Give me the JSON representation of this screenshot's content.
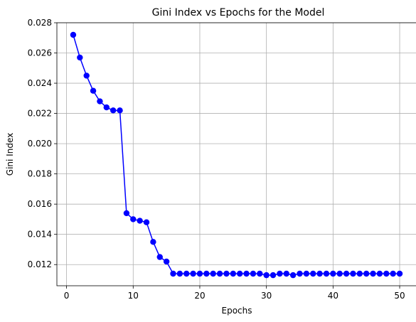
{
  "chart_data": {
    "type": "line",
    "title": "Gini Index vs Epochs for the Model",
    "xlabel": "Epochs",
    "ylabel": "Gini Index",
    "xlim": [
      -1.45,
      52.45
    ],
    "ylim": [
      0.0106,
      0.028
    ],
    "xticks": [
      0,
      10,
      20,
      30,
      40,
      50
    ],
    "yticks": [
      0.012,
      0.014,
      0.016,
      0.018,
      0.02,
      0.022,
      0.024,
      0.026,
      0.028
    ],
    "ytick_labels": [
      "0.012",
      "0.014",
      "0.016",
      "0.018",
      "0.020",
      "0.022",
      "0.024",
      "0.026",
      "0.028"
    ],
    "grid": true,
    "colors": {
      "series": "#0000ff"
    },
    "series": [
      {
        "x": [
          1,
          2,
          3,
          4,
          5,
          6,
          7,
          8,
          9,
          10,
          11,
          12,
          13,
          14,
          15,
          16,
          17,
          18,
          19,
          20,
          21,
          22,
          23,
          24,
          25,
          26,
          27,
          28,
          29,
          30,
          31,
          32,
          33,
          34,
          35,
          36,
          37,
          38,
          39,
          40,
          41,
          42,
          43,
          44,
          45,
          46,
          47,
          48,
          49,
          50
        ],
        "values": [
          0.0272,
          0.0257,
          0.0245,
          0.0235,
          0.0228,
          0.0224,
          0.0222,
          0.0222,
          0.0154,
          0.015,
          0.0149,
          0.0148,
          0.0135,
          0.0125,
          0.0122,
          0.0114,
          0.0114,
          0.0114,
          0.0114,
          0.0114,
          0.0114,
          0.0114,
          0.0114,
          0.0114,
          0.0114,
          0.0114,
          0.0114,
          0.0114,
          0.0114,
          0.0113,
          0.0113,
          0.0114,
          0.0114,
          0.0113,
          0.0114,
          0.0114,
          0.0114,
          0.0114,
          0.0114,
          0.0114,
          0.0114,
          0.0114,
          0.0114,
          0.0114,
          0.0114,
          0.0114,
          0.0114,
          0.0114,
          0.0114,
          0.0114
        ]
      }
    ]
  }
}
